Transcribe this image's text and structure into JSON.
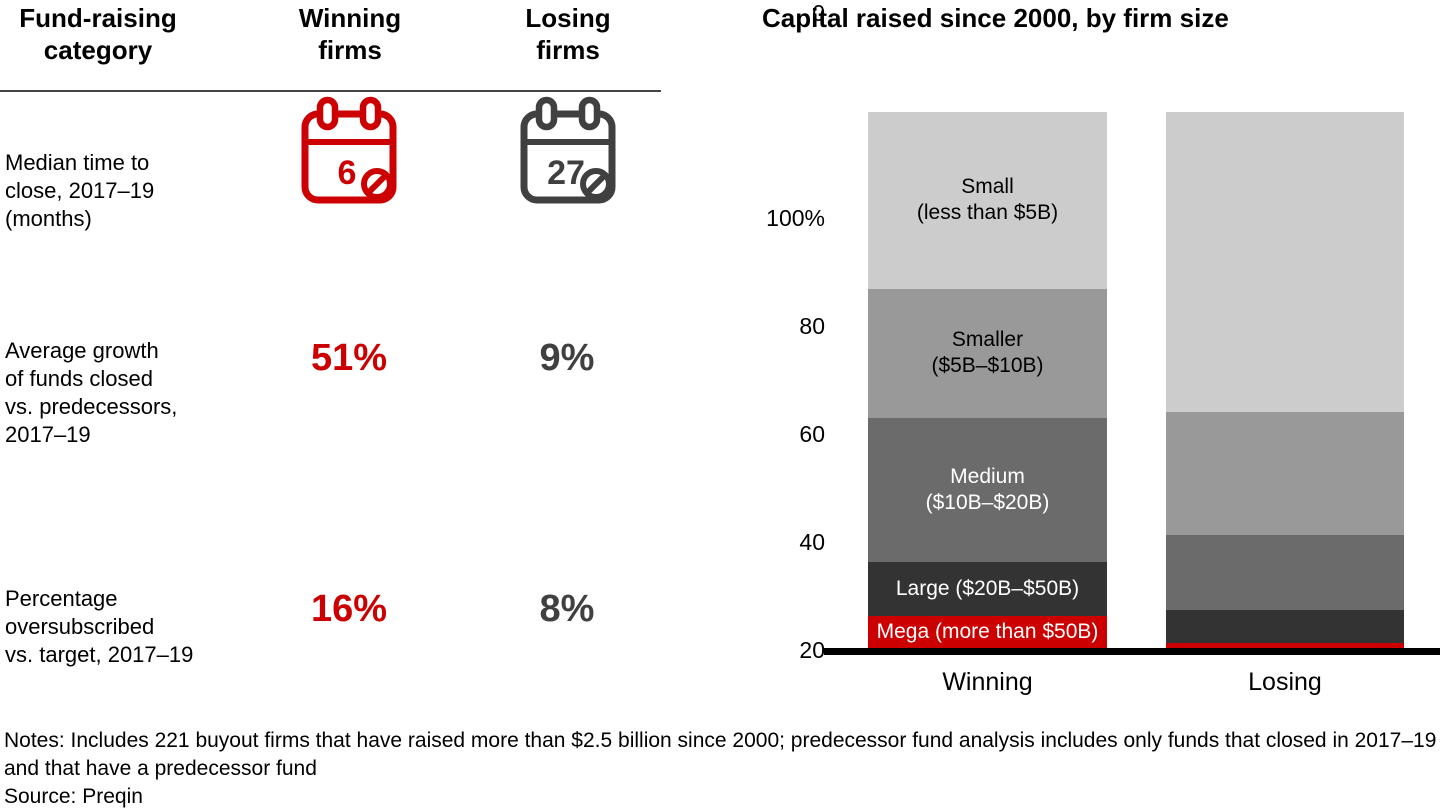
{
  "table": {
    "header": {
      "category": "Fund-raising\ncategory",
      "winning": "Winning\nfirms",
      "losing": "Losing\nfirms"
    },
    "rows": [
      {
        "label": "Median time to\nclose, 2017–19\n(months)",
        "winning_value": "6",
        "losing_value": "27",
        "icon": "calendar-icon"
      },
      {
        "label": "Average growth\nof funds closed\nvs. predecessors,\n2017–19",
        "winning_value": "51%",
        "losing_value": "9%"
      },
      {
        "label": "Percentage\noversubscribed\nvs. target, 2017–19",
        "winning_value": "16%",
        "losing_value": "8%"
      }
    ],
    "colors": {
      "winning_accent": "#cc0000",
      "losing_accent": "#404040"
    }
  },
  "chart_data": {
    "type": "bar",
    "stacked": true,
    "title": "Capital raised since 2000, by firm size",
    "categories": [
      "Winning",
      "Losing"
    ],
    "unit": "% of capital raised",
    "ylim": [
      0,
      100
    ],
    "yticks": [
      "100%",
      "80",
      "60",
      "40",
      "20",
      "0"
    ],
    "grid": false,
    "legend_position": "labels-inside-first-bar",
    "series": [
      {
        "name": "Mega (more than $50B)",
        "values": [
          6,
          1
        ],
        "color": "#cc0000",
        "label": "Mega (more than $50B)",
        "label_color": "#ffffff"
      },
      {
        "name": "Large ($20B–$50B)",
        "values": [
          10,
          6
        ],
        "color": "#333333",
        "label": "Large ($20B–$50B)",
        "label_color": "#ffffff"
      },
      {
        "name": "Medium ($10B–$20B)",
        "values": [
          27,
          14
        ],
        "color": "#6b6b6b",
        "label": "Medium\n($10B–$20B)",
        "label_color": "#ffffff"
      },
      {
        "name": "Smaller ($5B–$10B)",
        "values": [
          24,
          23
        ],
        "color": "#999999",
        "label": "Smaller\n($5B–$10B)",
        "label_color": "#000000"
      },
      {
        "name": "Small (less than $5B)",
        "values": [
          33,
          56
        ],
        "color": "#cccccc",
        "label": "Small\n(less than $5B)",
        "label_color": "#000000"
      }
    ]
  },
  "footer": {
    "notes": "Notes: Includes 221 buyout firms that have raised more than $2.5 billion since 2000; predecessor fund analysis includes only funds that closed in 2017–19 and that have a predecessor fund",
    "source": "Source: Preqin"
  }
}
